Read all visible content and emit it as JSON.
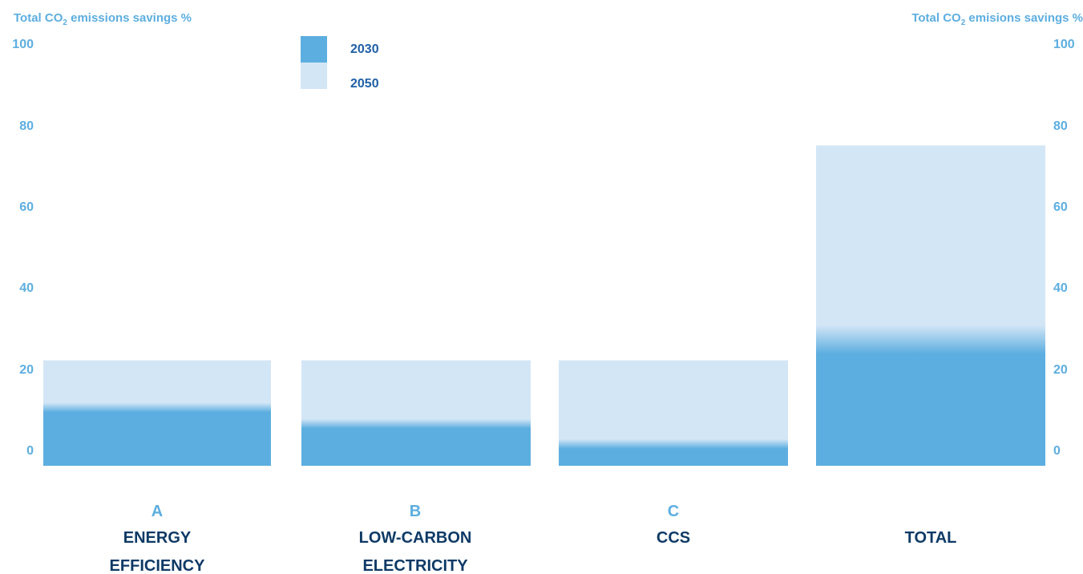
{
  "colors": {
    "series_2030": "#5DAEE0",
    "series_2050": "#D3E6F6",
    "tick_text": "#5DAEE0",
    "label_dark": "#0E3A66",
    "legend_text": "#1F5FA6"
  },
  "left_axis_title": "Total CO",
  "left_axis_title_sub": "2",
  "left_axis_title_rest": " emissions savings %",
  "right_axis_title": "Total CO",
  "right_axis_title_sub": "2",
  "right_axis_title_rest": " emisions savings %",
  "chart_data": {
    "type": "bar",
    "stacked": false,
    "overlapped": true,
    "categories": [
      {
        "letter": "A",
        "lines": [
          "ENERGY",
          "EFFICIENCY"
        ]
      },
      {
        "letter": "B",
        "lines": [
          "LOW-CARBON",
          "ELECTRICITY"
        ]
      },
      {
        "letter": "C",
        "lines": [
          "CCS"
        ]
      },
      {
        "letter": "",
        "lines": [
          "TOTAL"
        ]
      }
    ],
    "series": [
      {
        "name": "2030",
        "values": [
          14,
          10,
          5,
          30
        ]
      },
      {
        "name": "2050",
        "values": [
          26,
          26,
          26,
          79
        ]
      }
    ],
    "yticks": [
      100,
      80,
      60,
      40,
      20,
      0
    ],
    "ylim": [
      0,
      104
    ],
    "grid": false,
    "legend_position": "top-left"
  }
}
